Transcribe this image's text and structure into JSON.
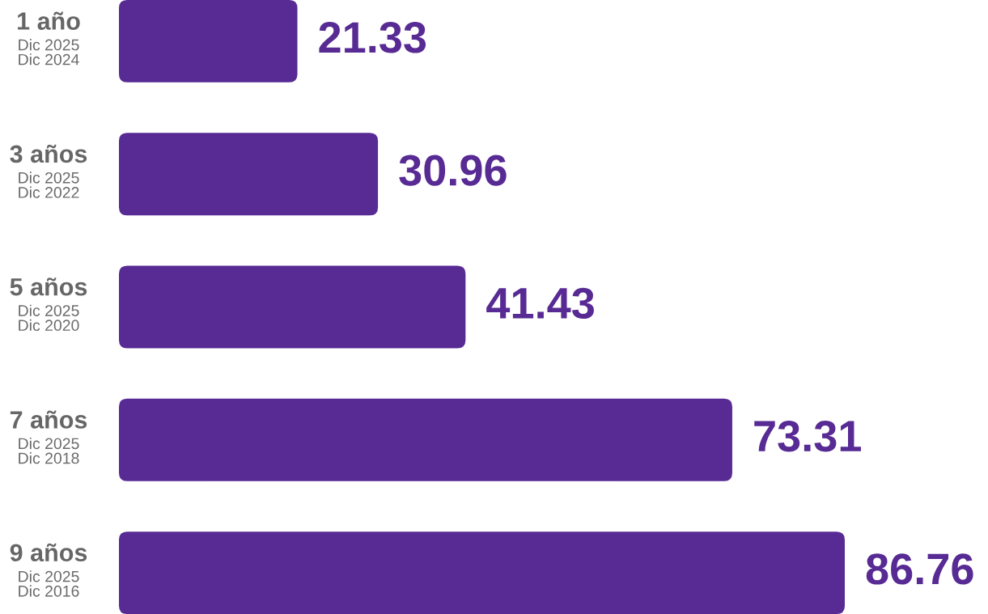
{
  "chart_data": {
    "type": "bar",
    "orientation": "horizontal",
    "categories": [
      "1 año\nDic 2025\nDic 2024",
      "3 años\nDic 2025\nDic 2022",
      "5 años\nDic 2025\nDic 2020",
      "7 años\nDic 2025\nDic 2018",
      "9 años\nDic 2025\nDic 2016"
    ],
    "values": [
      21.33,
      30.96,
      41.43,
      73.31,
      86.76
    ],
    "color": "#572a94",
    "data_labels": true
  }
}
